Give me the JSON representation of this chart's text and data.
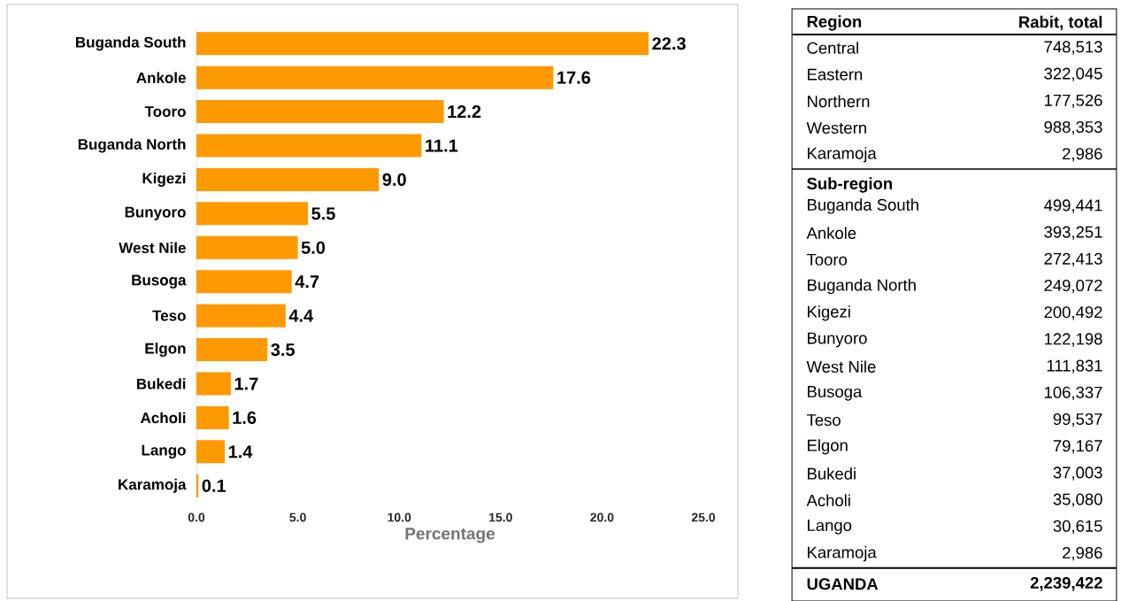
{
  "chart_data": [
    {
      "type": "bar",
      "orientation": "horizontal",
      "categories": [
        "Buganda South",
        "Ankole",
        "Tooro",
        "Buganda North",
        "Kigezi",
        "Bunyoro",
        "West Nile",
        "Busoga",
        "Teso",
        "Elgon",
        "Bukedi",
        "Acholi",
        "Lango",
        "Karamoja"
      ],
      "values": [
        22.3,
        17.6,
        12.2,
        11.1,
        9.0,
        5.5,
        5.0,
        4.7,
        4.4,
        3.5,
        1.7,
        1.6,
        1.4,
        0.1
      ],
      "value_labels": [
        "22.3",
        "17.6",
        "12.2",
        "11.1",
        "9.0",
        "5.5",
        "5.0",
        "4.7",
        "4.4",
        "3.5",
        "1.7",
        "1.6",
        "1.4",
        "0.1"
      ],
      "color": "#ff9900",
      "xlabel": "Percentage",
      "xlim": [
        0,
        25
      ],
      "xticks": [
        {
          "value": 0,
          "label": "0.0"
        },
        {
          "value": 5,
          "label": "5.0"
        },
        {
          "value": 10,
          "label": "10.0"
        },
        {
          "value": 15,
          "label": "15.0"
        },
        {
          "value": 20,
          "label": "20.0"
        },
        {
          "value": 25,
          "label": "25.0"
        }
      ]
    },
    {
      "type": "other",
      "ylabel": "Rabit, total",
      "categories": [
        "Central",
        "Eastern",
        "Northern",
        "Western",
        "Karamoja",
        "Buganda South",
        "Ankole",
        "Tooro",
        "Buganda North",
        "Kigezi",
        "Bunyoro",
        "West Nile",
        "Busoga",
        "Teso",
        "Elgon",
        "Bukedi",
        "Acholi",
        "Lango",
        "Karamoja",
        "UGANDA"
      ],
      "series": [
        {
          "name": "Region",
          "values": [
            748513,
            322045,
            177526,
            988353,
            2986,
            null,
            null,
            null,
            null,
            null,
            null,
            null,
            null,
            null,
            null,
            null,
            null,
            null,
            null,
            null
          ],
          "value_labels": [
            "748,513",
            "322,045",
            "177,526",
            "988,353",
            "2,986",
            null,
            null,
            null,
            null,
            null,
            null,
            null,
            null,
            null,
            null,
            null,
            null,
            null,
            null,
            null
          ]
        },
        {
          "name": "Sub-region",
          "values": [
            null,
            null,
            null,
            null,
            null,
            499441,
            393251,
            272413,
            249072,
            200492,
            122198,
            111831,
            106337,
            99537,
            79167,
            37003,
            35080,
            30615,
            2986,
            null
          ],
          "value_labels": [
            null,
            null,
            null,
            null,
            null,
            "499,441",
            "393,251",
            "272,413",
            "249,072",
            "200,492",
            "122,198",
            "111,831",
            "106,337",
            "99,537",
            "79,167",
            "37,003",
            "35,080",
            "30,615",
            "2,986",
            null
          ]
        },
        {
          "values": [
            null,
            null,
            null,
            null,
            null,
            null,
            null,
            null,
            null,
            null,
            null,
            null,
            null,
            null,
            null,
            null,
            null,
            null,
            null,
            2239422
          ],
          "value_labels": [
            null,
            null,
            null,
            null,
            null,
            null,
            null,
            null,
            null,
            null,
            null,
            null,
            null,
            null,
            null,
            null,
            null,
            null,
            null,
            "2,239,422"
          ]
        }
      ]
    }
  ]
}
